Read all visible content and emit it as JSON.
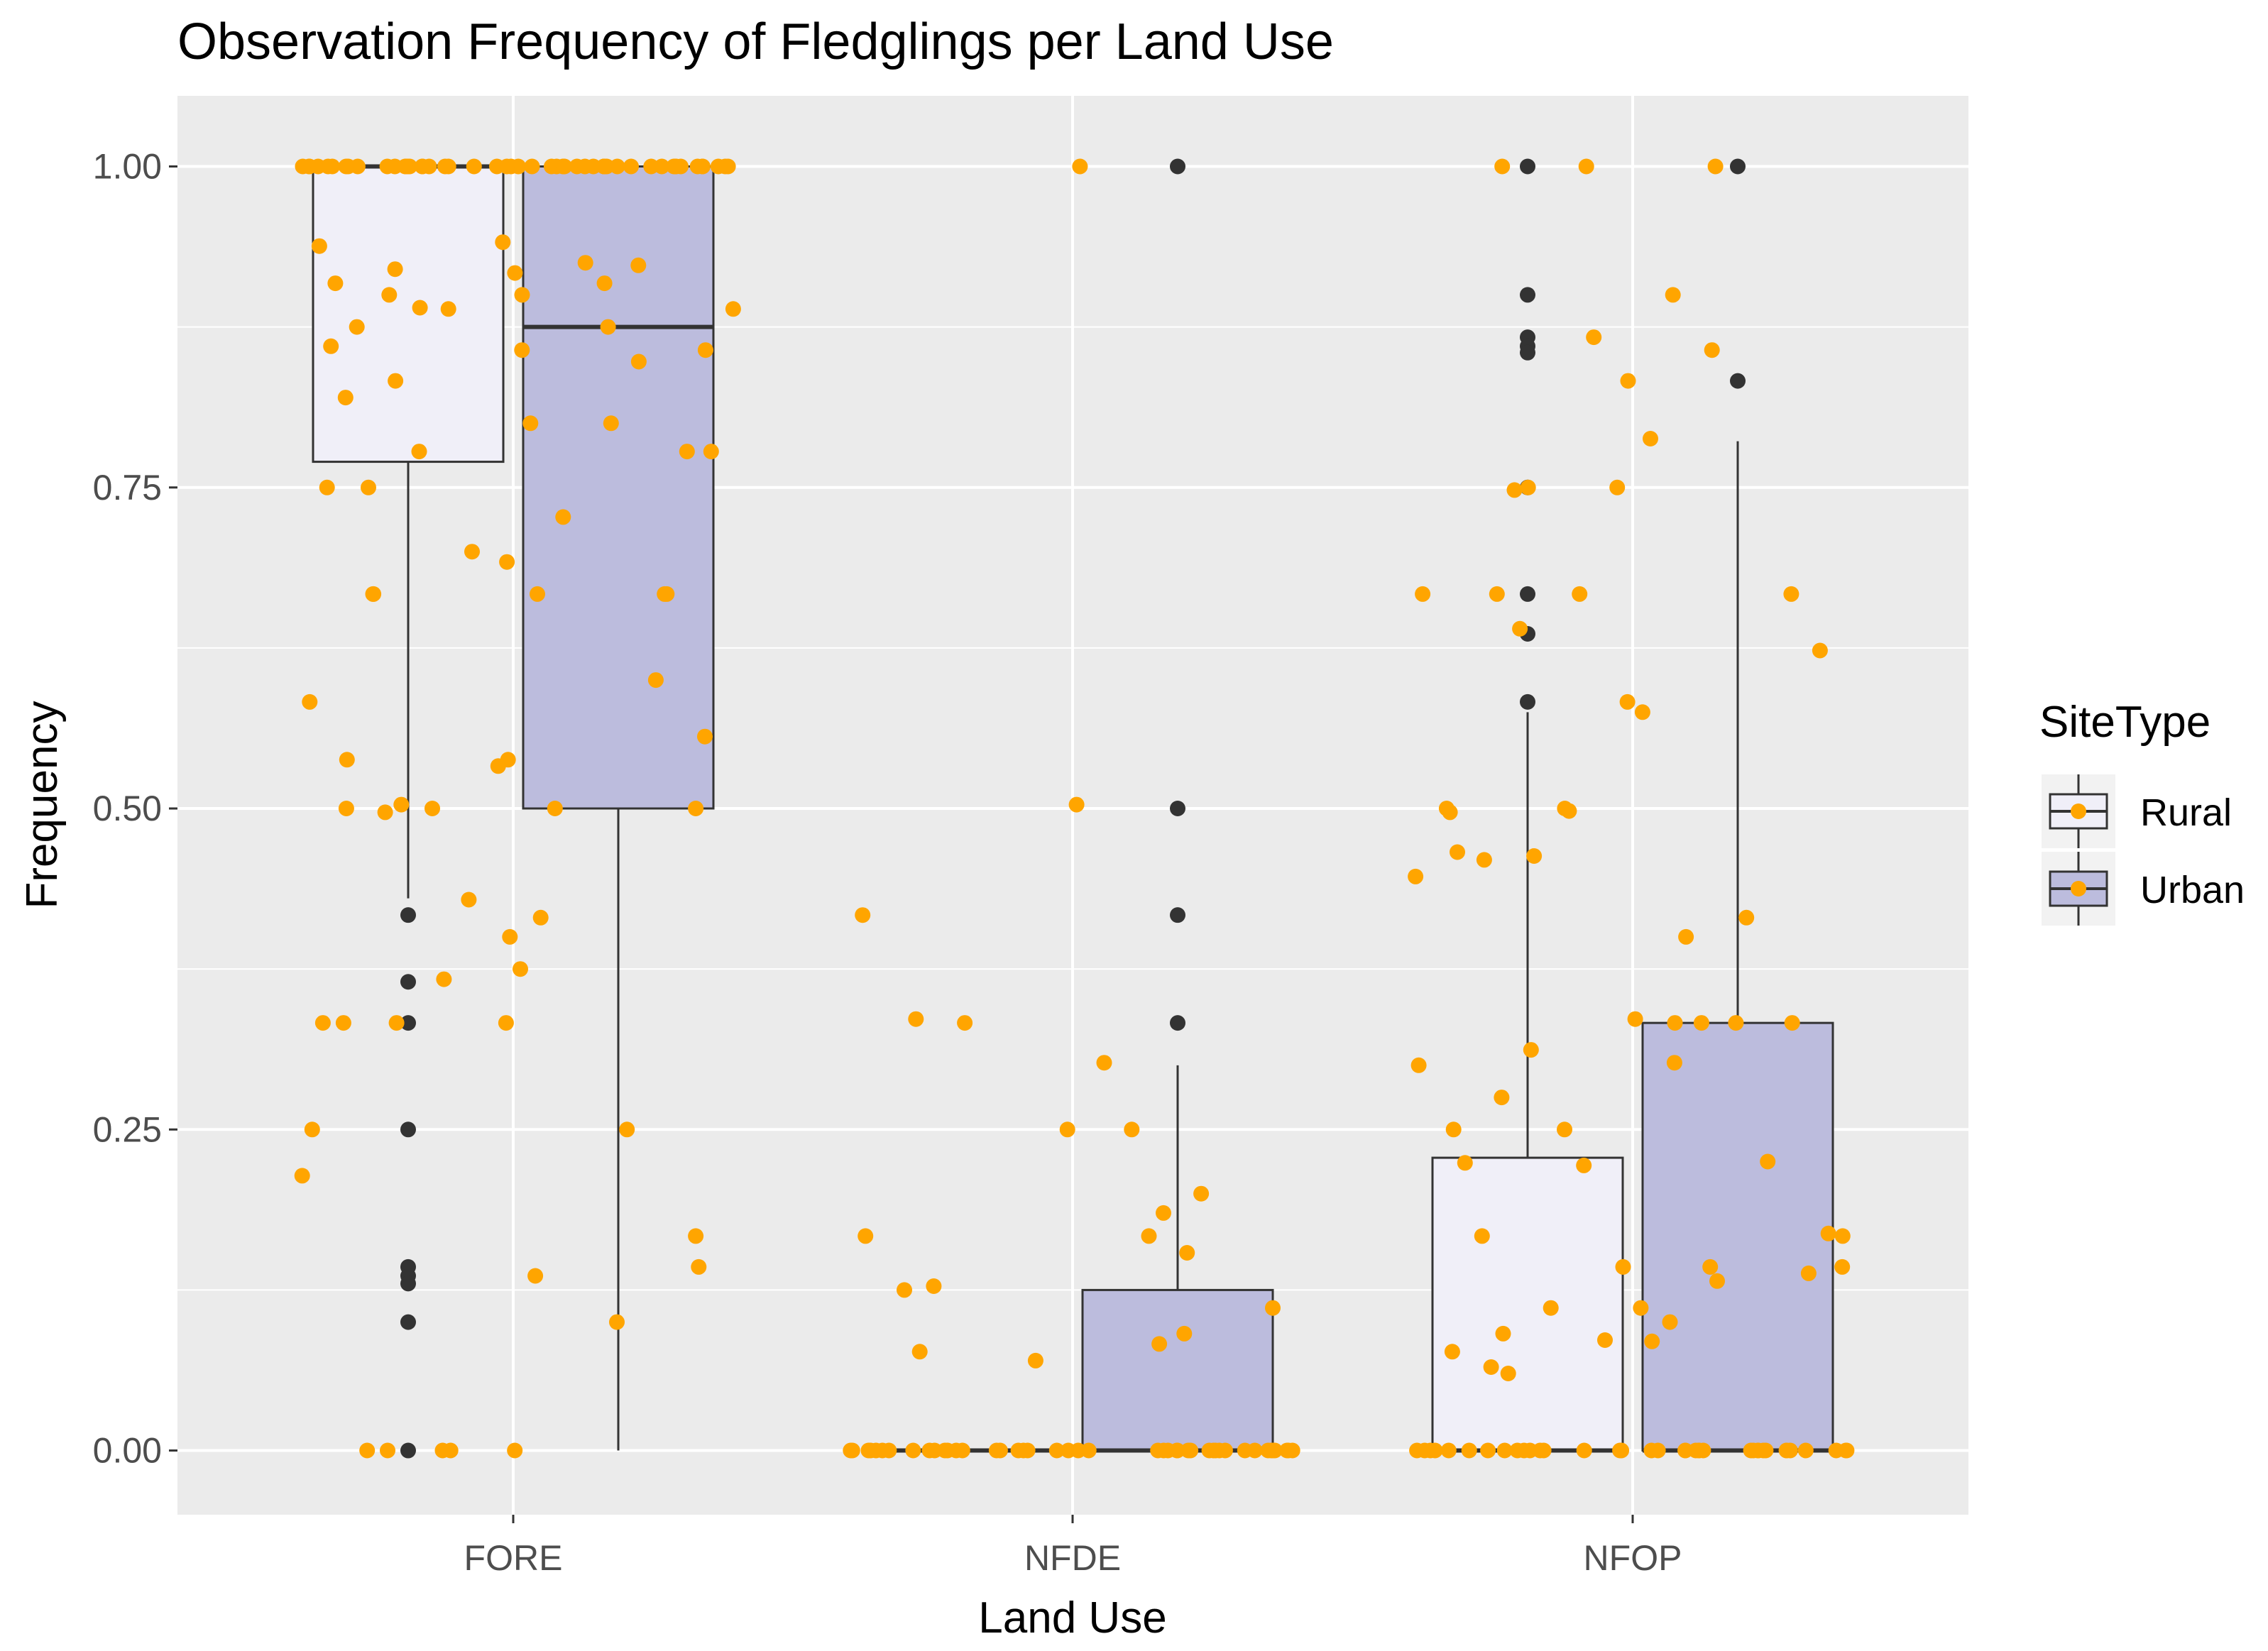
{
  "chart_data": {
    "type": "box",
    "title": "Observation Frequency of Fledglings per Land Use",
    "xlabel": "Land Use",
    "ylabel": "Frequency",
    "categories": [
      "FORE",
      "NFDE",
      "NFOP"
    ],
    "y_ticks": [
      "0.00",
      "0.25",
      "0.50",
      "0.75",
      "1.00"
    ],
    "ylim": [
      -0.05,
      1.055
    ],
    "legend_title": "SiteType",
    "series": [
      {
        "name": "Rural",
        "fill": "#f0eff8",
        "boxes": [
          {
            "category": "FORE",
            "q1": 0.77,
            "median": 1.0,
            "q3": 1.0,
            "whisker_low": 0.43,
            "whisker_high": 1.0,
            "outliers": [
              0.417,
              0.365,
              0.333,
              0.25,
              0.143,
              0.136,
              0.13,
              0.1,
              0.0
            ]
          },
          {
            "category": "NFDE",
            "q1": 0.0,
            "median": 0.0,
            "q3": 0.0,
            "whisker_low": 0.0,
            "whisker_high": 0.0,
            "outliers": []
          },
          {
            "category": "NFOP",
            "q1": 0.0,
            "median": 0.0,
            "q3": 0.228,
            "whisker_low": 0.0,
            "whisker_high": 0.575,
            "outliers": [
              1.0,
              0.9,
              0.867,
              0.86,
              0.855,
              0.75,
              0.667,
              0.636,
              0.583
            ]
          }
        ]
      },
      {
        "name": "Urban",
        "fill": "#bcbcdd",
        "boxes": [
          {
            "category": "FORE",
            "q1": 0.5,
            "median": 0.875,
            "q3": 1.0,
            "whisker_low": 0.0,
            "whisker_high": 1.0,
            "outliers": []
          },
          {
            "category": "NFDE",
            "q1": 0.0,
            "median": 0.0,
            "q3": 0.125,
            "whisker_low": 0.0,
            "whisker_high": 0.3,
            "outliers": [
              1.0,
              0.5,
              0.417,
              0.333
            ]
          },
          {
            "category": "NFOP",
            "q1": 0.0,
            "median": 0.0,
            "q3": 0.333,
            "whisker_low": 0.0,
            "whisker_high": 0.786,
            "outliers": [
              1.0,
              0.833
            ]
          }
        ]
      }
    ],
    "jitter_points": {
      "color": "#ffa500",
      "FORE": {
        "Rural": [
          1.0,
          1.0,
          1.0,
          1.0,
          1.0,
          1.0,
          1.0,
          1.0,
          1.0,
          1.0,
          1.0,
          1.0,
          1.0,
          1.0,
          1.0,
          1.0,
          1.0,
          1.0,
          1.0,
          1.0,
          1.0,
          1.0,
          1.0,
          1.0,
          0.938,
          0.92,
          0.917,
          0.909,
          0.9,
          0.89,
          0.889,
          0.875,
          0.86,
          0.857,
          0.833,
          0.82,
          0.778,
          0.75,
          0.75,
          0.7,
          0.667,
          0.667,
          0.583,
          0.538,
          0.538,
          0.533,
          0.503,
          0.5,
          0.5,
          0.497,
          0.429,
          0.367,
          0.333,
          0.333,
          0.333,
          0.25,
          0.214,
          0.0,
          0.0,
          0.0,
          0.0,
          0.0
        ],
        "Urban": [
          1.0,
          1.0,
          1.0,
          1.0,
          1.0,
          1.0,
          1.0,
          1.0,
          1.0,
          1.0,
          1.0,
          1.0,
          1.0,
          1.0,
          1.0,
          1.0,
          1.0,
          1.0,
          1.0,
          1.0,
          1.0,
          1.0,
          1.0,
          1.0,
          1.0,
          1.0,
          1.0,
          1.0,
          0.941,
          0.925,
          0.923,
          0.909,
          0.9,
          0.889,
          0.875,
          0.857,
          0.848,
          0.8,
          0.8,
          0.778,
          0.778,
          0.727,
          0.692,
          0.667,
          0.667,
          0.667,
          0.6,
          0.556,
          0.5,
          0.5,
          0.415,
          0.4,
          0.375,
          0.333,
          0.25,
          0.167,
          0.143,
          0.136,
          0.1
        ]
      },
      "NFDE": {
        "Rural": [
          0.417,
          0.336,
          0.333,
          0.167,
          0.128,
          0.125,
          0.077,
          0.07,
          0.0,
          0.0,
          0.0,
          0.0,
          0.0,
          0.0,
          0.0,
          0.0,
          0.0,
          0.0,
          0.0,
          0.0,
          0.0,
          0.0,
          0.0,
          0.0,
          0.0,
          0.0,
          0.0,
          0.0,
          0.0
        ],
        "Urban": [
          1.0,
          0.503,
          0.302,
          0.25,
          0.25,
          0.2,
          0.185,
          0.167,
          0.154,
          0.111,
          0.091,
          0.083,
          0.0,
          0.0,
          0.0,
          0.0,
          0.0,
          0.0,
          0.0,
          0.0,
          0.0,
          0.0,
          0.0,
          0.0,
          0.0,
          0.0,
          0.0,
          0.0,
          0.0,
          0.0,
          0.0,
          0.0,
          0.0,
          0.0,
          0.0
        ]
      },
      "NFOP": {
        "Rural": [
          1.0,
          1.0,
          0.867,
          0.75,
          0.748,
          0.75,
          0.667,
          0.667,
          0.667,
          0.64,
          0.575,
          0.5,
          0.5,
          0.498,
          0.497,
          0.466,
          0.463,
          0.46,
          0.447,
          0.336,
          0.312,
          0.3,
          0.275,
          0.25,
          0.25,
          0.224,
          0.222,
          0.167,
          0.143,
          0.111,
          0.091,
          0.086,
          0.077,
          0.065,
          0.06,
          0.0,
          0.0,
          0.0,
          0.0,
          0.0,
          0.0,
          0.0,
          0.0,
          0.0,
          0.0,
          0.0,
          0.0,
          0.0,
          0.0,
          0.0,
          0.0
        ],
        "Urban": [
          1.0,
          0.9,
          0.857,
          0.833,
          0.788,
          0.667,
          0.623,
          0.583,
          0.415,
          0.4,
          0.333,
          0.333,
          0.333,
          0.333,
          0.302,
          0.225,
          0.169,
          0.167,
          0.143,
          0.143,
          0.138,
          0.132,
          0.111,
          0.1,
          0.085,
          0.0,
          0.0,
          0.0,
          0.0,
          0.0,
          0.0,
          0.0,
          0.0,
          0.0,
          0.0,
          0.0,
          0.0,
          0.0,
          0.0,
          0.0,
          0.0,
          0.0,
          0.0,
          0.0,
          0.0,
          0.0
        ]
      }
    },
    "colors": {
      "panel_bg": "#ebebeb",
      "grid": "#ffffff",
      "box_stroke": "#333333",
      "outlier": "#333333",
      "point": "#ffa500"
    }
  }
}
